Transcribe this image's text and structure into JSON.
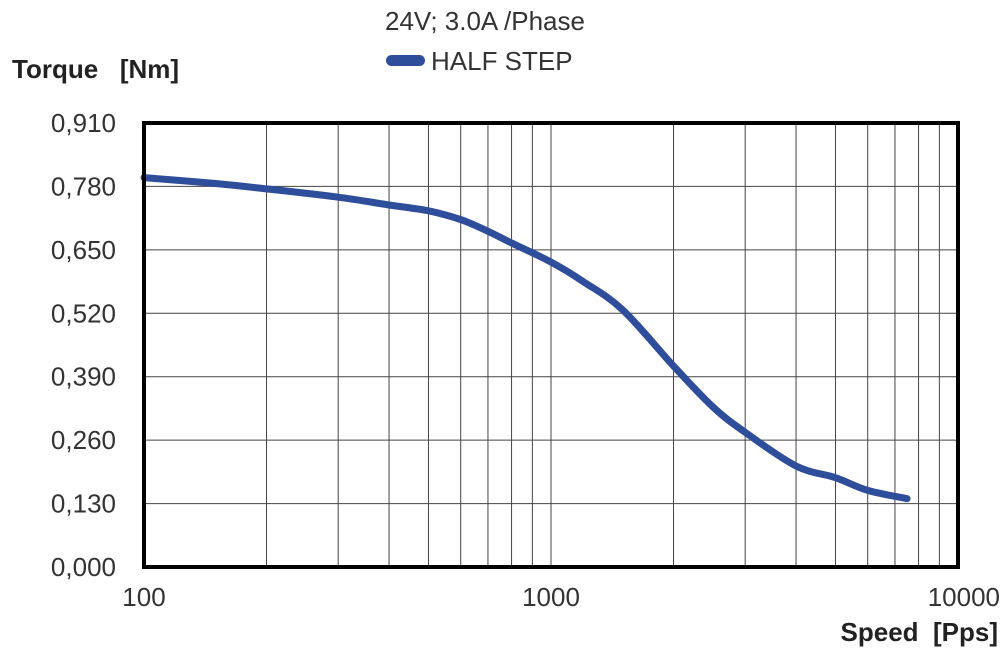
{
  "chart_data": {
    "type": "line",
    "title": "24V;  3.0A /Phase",
    "ylabel": "Torque   [Nm]",
    "xlabel": "Speed  [Pps]",
    "x_scale": "log",
    "xlim": [
      100,
      10000
    ],
    "ylim": [
      0.0,
      0.91
    ],
    "x_ticks": [
      100,
      1000,
      10000
    ],
    "x_tick_labels": [
      "100",
      "1000",
      "10000"
    ],
    "y_ticks": [
      0.0,
      0.13,
      0.26,
      0.39,
      0.52,
      0.65,
      0.78,
      0.91
    ],
    "y_tick_labels": [
      "0,000",
      "0,130",
      "0,260",
      "0,390",
      "0,520",
      "0,650",
      "0,780",
      "0,910"
    ],
    "grid": true,
    "legend_position": "top-center",
    "series": [
      {
        "name": "HALF STEP",
        "color": "#2e4d9a",
        "x": [
          100,
          150,
          200,
          300,
          400,
          500,
          600,
          700,
          800,
          1000,
          1200,
          1500,
          2000,
          2500,
          3000,
          4000,
          5000,
          6000,
          7500
        ],
        "y": [
          0.798,
          0.786,
          0.775,
          0.758,
          0.742,
          0.73,
          0.712,
          0.688,
          0.664,
          0.625,
          0.585,
          0.527,
          0.412,
          0.328,
          0.276,
          0.207,
          0.183,
          0.157,
          0.14
        ]
      }
    ]
  }
}
